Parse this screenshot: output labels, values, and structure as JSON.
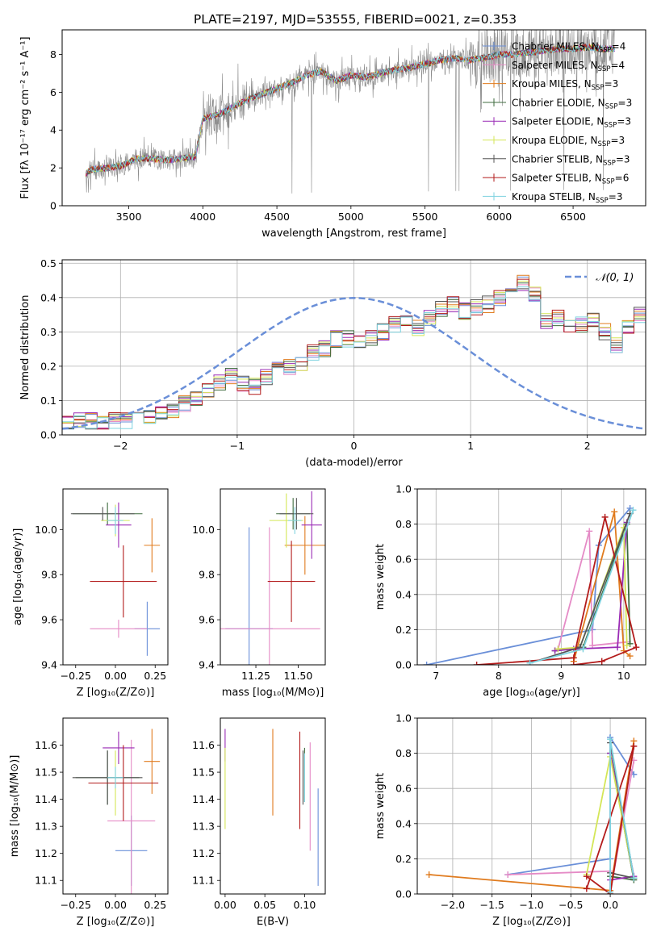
{
  "figure": {
    "title": "PLATE=2197, MJD=53555, FIBERID=0021, z=0.353"
  },
  "series_styles": [
    {
      "name": "Chabrier MILES",
      "nssp": "4",
      "color": "#6a8fd8"
    },
    {
      "name": "Salpeter MILES",
      "nssp": "4",
      "color": "#e58bc6"
    },
    {
      "name": "Kroupa MILES",
      "nssp": "3",
      "color": "#e07b1e"
    },
    {
      "name": "Chabrier ELODIE",
      "nssp": "3",
      "color": "#3e6b3e"
    },
    {
      "name": "Salpeter ELODIE",
      "nssp": "3",
      "color": "#9a2bb5"
    },
    {
      "name": "Kroupa ELODIE",
      "nssp": "3",
      "color": "#d4e657"
    },
    {
      "name": "Chabrier STELIB",
      "nssp": "3",
      "color": "#555555"
    },
    {
      "name": "Salpeter STELIB",
      "nssp": "6",
      "color": "#b31b1b"
    },
    {
      "name": "Kroupa STELIB",
      "nssp": "3",
      "color": "#7fd3e0"
    }
  ],
  "chart_data": [
    {
      "id": "spectrum",
      "type": "line",
      "xlabel": "wavelength [Angstrom, rest frame]",
      "ylabel": "Flux [fλ 10⁻¹⁷ erg cm⁻² s⁻¹ A⁻¹]",
      "xlim": [
        3050,
        6990
      ],
      "ylim": [
        0,
        9.3
      ],
      "xticks": [
        3500,
        4000,
        4500,
        5000,
        5500,
        6000,
        6500
      ],
      "yticks": [
        0,
        2,
        4,
        6,
        8
      ],
      "legend_position": "top-right",
      "data_continuum": {
        "x": [
          3210,
          3250,
          3350,
          3450,
          3550,
          3650,
          3750,
          3850,
          3950,
          4000,
          4100,
          4200,
          4300,
          4400,
          4500,
          4600,
          4700,
          4800,
          4900,
          5000,
          5100,
          5200,
          5300,
          5400,
          5500,
          5600,
          5700,
          5800,
          5900,
          6000,
          6100,
          6200,
          6300,
          6400,
          6500,
          6600,
          6700,
          6780
        ],
        "y": [
          1.7,
          1.9,
          2.0,
          2.1,
          2.5,
          2.5,
          2.4,
          2.5,
          2.6,
          4.6,
          4.8,
          5.2,
          5.6,
          5.9,
          6.2,
          6.5,
          6.9,
          7.1,
          6.6,
          6.9,
          6.8,
          7.0,
          7.2,
          7.3,
          7.5,
          7.7,
          7.8,
          7.7,
          7.8,
          8.0,
          8.0,
          8.1,
          8.2,
          8.3,
          8.3,
          8.4,
          8.3,
          8.3
        ]
      }
    },
    {
      "id": "residuals",
      "type": "line",
      "xlabel": "(data-model)/error",
      "ylabel": "Normed distribution",
      "xlim": [
        -2.5,
        2.5
      ],
      "ylim": [
        0,
        0.51
      ],
      "xticks": [
        -2,
        -1,
        0,
        1,
        2
      ],
      "xtick_labels": [
        "−2",
        "−1",
        "0",
        "1",
        "2"
      ],
      "yticks": [
        0.0,
        0.1,
        0.2,
        0.3,
        0.4,
        0.5
      ],
      "grid": true,
      "legend_position": "top-right",
      "reference": {
        "name": "𝒩(0, 1)",
        "type": "dashed",
        "color": "#6a8fd8"
      },
      "bin_width": 0.1,
      "bins_start": -2.5,
      "base_hist": [
        0.03,
        0.04,
        0.04,
        0.04,
        0.04,
        0.04,
        0.05,
        0.05,
        0.07,
        0.07,
        0.09,
        0.11,
        0.13,
        0.15,
        0.17,
        0.15,
        0.14,
        0.17,
        0.19,
        0.2,
        0.21,
        0.24,
        0.25,
        0.28,
        0.28,
        0.27,
        0.28,
        0.3,
        0.32,
        0.33,
        0.31,
        0.34,
        0.37,
        0.38,
        0.36,
        0.37,
        0.38,
        0.4,
        0.42,
        0.44,
        0.41,
        0.33,
        0.34,
        0.32,
        0.32,
        0.33,
        0.3,
        0.26,
        0.32,
        0.35,
        0.34,
        0.31,
        0.28,
        0.27,
        0.26,
        0.23,
        0.22,
        0.2,
        0.19,
        0.2,
        0.21,
        0.17,
        0.15,
        0.15,
        0.14,
        0.13,
        0.12,
        0.11,
        0.09,
        0.08,
        0.07,
        0.07,
        0.06,
        0.06,
        0.05,
        0.05,
        0.05,
        0.05,
        0.04,
        0.04,
        0.04,
        0.04,
        0.05,
        0.05,
        0.05,
        0.04,
        0.04,
        0.04,
        0.04,
        0.04,
        0.04,
        0.04,
        0.04,
        0.04,
        0.04,
        0.04,
        0.04,
        0.04,
        0.04,
        0.04
      ]
    },
    {
      "id": "Z-age",
      "type": "scatter",
      "xlabel": "Z [log₁₀(Z/Z⊙)]",
      "ylabel": "age  [log₁₀(age/yr)]",
      "xlim": [
        -0.33,
        0.33
      ],
      "ylim": [
        9.4,
        10.18
      ],
      "xticks": [
        -0.25,
        0.0,
        0.25
      ],
      "xtick_labels": [
        "−0.25",
        "0.00",
        "0.25"
      ],
      "yticks": [
        9.4,
        9.6,
        9.8,
        10.0
      ],
      "points": [
        {
          "s": 0,
          "x": 0.2,
          "y": 9.56,
          "xerr": 0.08,
          "yerr": 0.12
        },
        {
          "s": 1,
          "x": 0.02,
          "y": 9.56,
          "xerr": 0.18,
          "yerr": 0.04
        },
        {
          "s": 2,
          "x": 0.23,
          "y": 9.93,
          "xerr": 0.05,
          "yerr": 0.12
        },
        {
          "s": 3,
          "x": -0.05,
          "y": 10.07,
          "xerr": 0.22,
          "yerr": 0.05
        },
        {
          "s": 4,
          "x": 0.02,
          "y": 10.02,
          "xerr": 0.08,
          "yerr": 0.1
        },
        {
          "s": 5,
          "x": 0.0,
          "y": 10.04,
          "xerr": 0.09,
          "yerr": 0.07
        },
        {
          "s": 6,
          "x": -0.08,
          "y": 10.07,
          "xerr": 0.2,
          "yerr": 0.03
        },
        {
          "s": 7,
          "x": 0.05,
          "y": 9.77,
          "xerr": 0.21,
          "yerr": 0.16
        },
        {
          "s": 8,
          "x": 0.0,
          "y": 10.04,
          "xerr": 0.05,
          "yerr": 0.06
        }
      ]
    },
    {
      "id": "mass-age",
      "type": "scatter",
      "xlabel": "mass [log₁₀(M/M⊙)]",
      "xlim": [
        11.04,
        11.66
      ],
      "ylim": [
        9.4,
        10.18
      ],
      "xticks": [
        11.25,
        11.5
      ],
      "xtick_labels": [
        "11.25",
        "11.50"
      ],
      "yticks": [
        9.4,
        9.6,
        9.8,
        10.0
      ],
      "points": [
        {
          "s": 0,
          "x": 11.21,
          "y": 9.56,
          "xerr": 0.14,
          "yerr": 0.45
        },
        {
          "s": 1,
          "x": 11.33,
          "y": 9.56,
          "xerr": 0.3,
          "yerr": 0.45
        },
        {
          "s": 2,
          "x": 11.54,
          "y": 9.93,
          "xerr": 0.12,
          "yerr": 0.13
        },
        {
          "s": 3,
          "x": 11.47,
          "y": 10.07,
          "xerr": 0.1,
          "yerr": 0.07
        },
        {
          "s": 4,
          "x": 11.58,
          "y": 10.02,
          "xerr": 0.06,
          "yerr": 0.15
        },
        {
          "s": 5,
          "x": 11.43,
          "y": 10.04,
          "xerr": 0.1,
          "yerr": 0.12
        },
        {
          "s": 6,
          "x": 11.49,
          "y": 10.07,
          "xerr": 0.1,
          "yerr": 0.07
        },
        {
          "s": 7,
          "x": 11.46,
          "y": 9.77,
          "xerr": 0.14,
          "yerr": 0.18
        },
        {
          "s": 8,
          "x": 11.48,
          "y": 10.04,
          "xerr": 0.04,
          "yerr": 0.06
        }
      ]
    },
    {
      "id": "weight-age",
      "type": "line",
      "xlabel": "age  [log₁₀(age/yr)]",
      "ylabel": "mass weight",
      "xlim": [
        6.7,
        10.35
      ],
      "ylim": [
        0,
        1.0
      ],
      "xticks": [
        7,
        8,
        9,
        10
      ],
      "yticks": [
        0.0,
        0.2,
        0.4,
        0.6,
        0.8,
        1.0
      ],
      "grid": true,
      "lines": [
        {
          "s": 0,
          "x": [
            6.85,
            9.5,
            9.6,
            10.1
          ],
          "y": [
            0.0,
            0.2,
            0.68,
            0.89
          ]
        },
        {
          "s": 1,
          "x": [
            8.95,
            9.45,
            9.5,
            10.05
          ],
          "y": [
            0.09,
            0.76,
            0.11,
            0.13
          ]
        },
        {
          "s": 2,
          "x": [
            9.2,
            9.85,
            10.0,
            10.1
          ],
          "y": [
            0.02,
            0.87,
            0.08,
            0.05
          ]
        },
        {
          "s": 3,
          "x": [
            8.9,
            9.35,
            10.05,
            10.1
          ],
          "y": [
            0.08,
            0.1,
            0.8,
            0.12
          ]
        },
        {
          "s": 4,
          "x": [
            8.9,
            9.2,
            9.9,
            10.05
          ],
          "y": [
            0.08,
            0.09,
            0.1,
            0.81
          ]
        },
        {
          "s": 5,
          "x": [
            8.95,
            9.3,
            10.0,
            10.05
          ],
          "y": [
            0.09,
            0.1,
            0.78,
            0.11
          ]
        },
        {
          "s": 6,
          "x": [
            8.5,
            9.3,
            10.1
          ],
          "y": [
            0.01,
            0.1,
            0.86
          ]
        },
        {
          "s": 7,
          "x": [
            7.65,
            9.2,
            9.7,
            10.2,
            9.65,
            9.2
          ],
          "y": [
            0.0,
            0.04,
            0.84,
            0.1,
            0.02,
            0.0
          ]
        },
        {
          "s": 8,
          "x": [
            8.5,
            9.35,
            10.15
          ],
          "y": [
            0.01,
            0.09,
            0.88
          ]
        }
      ]
    },
    {
      "id": "Z-mass",
      "type": "scatter",
      "xlabel": "Z [log₁₀(Z/Z⊙)]",
      "ylabel": "mass [log₁₀(M/M⊙)]",
      "xlim": [
        -0.33,
        0.33
      ],
      "ylim": [
        11.05,
        11.7
      ],
      "xticks": [
        -0.25,
        0.0,
        0.25
      ],
      "xtick_labels": [
        "−0.25",
        "0.00",
        "0.25"
      ],
      "yticks": [
        11.1,
        11.2,
        11.3,
        11.4,
        11.5,
        11.6
      ],
      "points": [
        {
          "s": 0,
          "x": 0.1,
          "y": 11.21,
          "xerr": 0.1,
          "yerr": 0.13
        },
        {
          "s": 1,
          "x": 0.1,
          "y": 11.32,
          "xerr": 0.15,
          "yerr": 0.3
        },
        {
          "s": 2,
          "x": 0.23,
          "y": 11.54,
          "xerr": 0.05,
          "yerr": 0.12
        },
        {
          "s": 3,
          "x": -0.05,
          "y": 11.48,
          "xerr": 0.2,
          "yerr": 0.1
        },
        {
          "s": 4,
          "x": 0.02,
          "y": 11.59,
          "xerr": 0.1,
          "yerr": 0.06
        },
        {
          "s": 5,
          "x": 0.0,
          "y": 11.46,
          "xerr": 0.09,
          "yerr": 0.12
        },
        {
          "s": 6,
          "x": -0.05,
          "y": 11.48,
          "xerr": 0.22,
          "yerr": 0.1
        },
        {
          "s": 7,
          "x": 0.05,
          "y": 11.46,
          "xerr": 0.22,
          "yerr": 0.14
        },
        {
          "s": 8,
          "x": 0.0,
          "y": 11.48,
          "xerr": 0.05,
          "yerr": 0.04
        }
      ]
    },
    {
      "id": "ebv-mass",
      "type": "scatter",
      "xlabel": "E(B-V)",
      "xlim": [
        -0.006,
        0.126
      ],
      "ylim": [
        11.05,
        11.7
      ],
      "xticks": [
        0.0,
        0.05,
        0.1
      ],
      "xtick_labels": [
        "0.00",
        "0.05",
        "0.10"
      ],
      "yticks": [
        11.1,
        11.2,
        11.3,
        11.4,
        11.5,
        11.6
      ],
      "points": [
        {
          "s": 0,
          "x": 0.117,
          "y": 11.26,
          "xerr": 0,
          "yerr": 0.18
        },
        {
          "s": 1,
          "x": 0.107,
          "y": 11.41,
          "xerr": 0,
          "yerr": 0.2
        },
        {
          "s": 2,
          "x": 0.06,
          "y": 11.5,
          "xerr": 0,
          "yerr": 0.16
        },
        {
          "s": 3,
          "x": 0.1,
          "y": 11.49,
          "xerr": 0,
          "yerr": 0.1
        },
        {
          "s": 4,
          "x": 0.0,
          "y": 11.6,
          "xerr": 0,
          "yerr": 0.06
        },
        {
          "s": 5,
          "x": 0.0,
          "y": 11.44,
          "xerr": 0,
          "yerr": 0.15
        },
        {
          "s": 6,
          "x": 0.098,
          "y": 11.48,
          "xerr": 0,
          "yerr": 0.1
        },
        {
          "s": 7,
          "x": 0.094,
          "y": 11.47,
          "xerr": 0,
          "yerr": 0.18
        },
        {
          "s": 8,
          "x": 0.1,
          "y": 11.48,
          "xerr": 0,
          "yerr": 0.09
        }
      ]
    },
    {
      "id": "weight-Z",
      "type": "line",
      "xlabel": "Z [log₁₀(Z/Z⊙)]",
      "ylabel": "mass weight",
      "xlim": [
        -2.45,
        0.45
      ],
      "ylim": [
        0,
        1.0
      ],
      "xticks": [
        -2.0,
        -1.5,
        -1.0,
        -0.5,
        0.0
      ],
      "xtick_labels": [
        "−2.0",
        "−1.5",
        "−1.0",
        "−0.5",
        "0.0"
      ],
      "yticks": [
        0.0,
        0.2,
        0.4,
        0.6,
        0.8,
        1.0
      ],
      "grid": true,
      "lines": [
        {
          "s": 0,
          "x": [
            -1.3,
            0.0,
            0.0,
            0.3
          ],
          "y": [
            0.11,
            0.2,
            0.89,
            0.68
          ]
        },
        {
          "s": 1,
          "x": [
            -1.3,
            0.0,
            0.0,
            0.3
          ],
          "y": [
            0.11,
            0.13,
            0.01,
            0.76
          ]
        },
        {
          "s": 2,
          "x": [
            -2.3,
            0.0,
            0.3
          ],
          "y": [
            0.11,
            0.02,
            0.87
          ]
        },
        {
          "s": 3,
          "x": [
            0.0,
            0.3,
            0.0
          ],
          "y": [
            0.1,
            0.08,
            0.8
          ]
        },
        {
          "s": 4,
          "x": [
            0.0,
            0.3,
            0.0
          ],
          "y": [
            0.08,
            0.1,
            0.8
          ]
        },
        {
          "s": 5,
          "x": [
            -0.3,
            0.0,
            0.3
          ],
          "y": [
            0.11,
            0.78,
            0.09
          ]
        },
        {
          "s": 6,
          "x": [
            0.0,
            0.3,
            0.0
          ],
          "y": [
            0.12,
            0.09,
            0.86
          ]
        },
        {
          "s": 7,
          "x": [
            -0.3,
            0.0,
            0.3,
            -0.3
          ],
          "y": [
            0.1,
            0.0,
            0.84,
            0.03
          ]
        },
        {
          "s": 8,
          "x": [
            0.0,
            0.0,
            0.3
          ],
          "y": [
            0.01,
            0.88,
            0.09
          ]
        }
      ]
    }
  ]
}
